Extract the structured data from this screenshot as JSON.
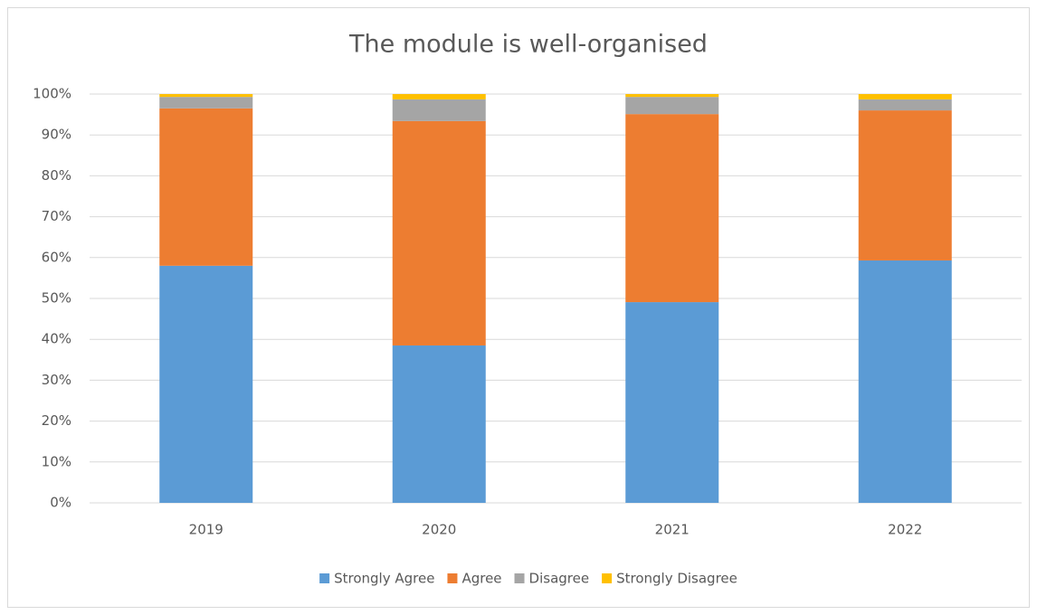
{
  "chart_data": {
    "type": "stacked_bar",
    "title": "The module is well-organised",
    "categories": [
      "2019",
      "2020",
      "2021",
      "2022"
    ],
    "series": [
      {
        "name": "Strongly Agree",
        "color": "#5b9bd5",
        "values": [
          58.0,
          38.5,
          49.1,
          59.3
        ]
      },
      {
        "name": "Agree",
        "color": "#ed7d31",
        "values": [
          38.5,
          54.9,
          46.0,
          36.7
        ]
      },
      {
        "name": "Disagree",
        "color": "#a5a5a5",
        "values": [
          2.8,
          5.3,
          4.2,
          2.7
        ]
      },
      {
        "name": "Strongly Disagree",
        "color": "#ffc000",
        "values": [
          0.7,
          1.3,
          0.7,
          1.3
        ]
      }
    ],
    "ylim": [
      0,
      100
    ],
    "yticks": [
      {
        "value": 0,
        "label": "0%"
      },
      {
        "value": 10,
        "label": "10%"
      },
      {
        "value": 20,
        "label": "20%"
      },
      {
        "value": 30,
        "label": "30%"
      },
      {
        "value": 40,
        "label": "40%"
      },
      {
        "value": 50,
        "label": "50%"
      },
      {
        "value": 60,
        "label": "60%"
      },
      {
        "value": 70,
        "label": "70%"
      },
      {
        "value": 80,
        "label": "80%"
      },
      {
        "value": 90,
        "label": "90%"
      },
      {
        "value": 100,
        "label": "100%"
      }
    ],
    "grid": true,
    "legend": "bottom"
  }
}
